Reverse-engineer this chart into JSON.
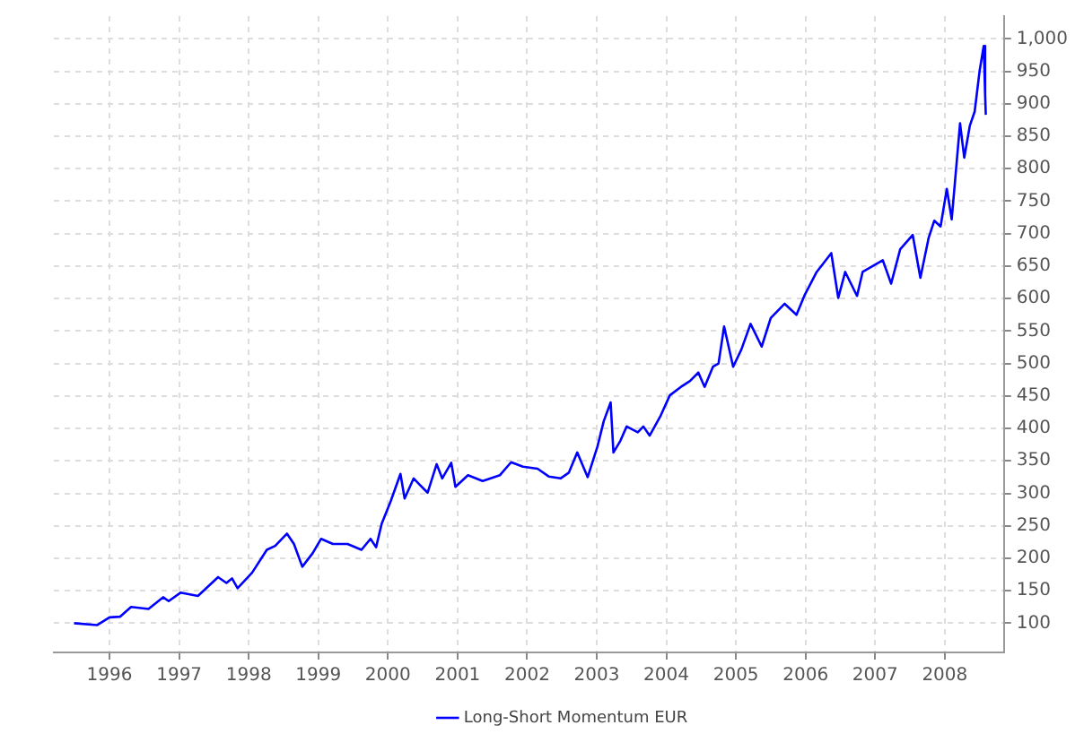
{
  "chart_data": {
    "type": "line",
    "xlim": [
      1995.2,
      2008.85
    ],
    "xticks": [
      1996,
      1997,
      1998,
      1999,
      2000,
      2001,
      2002,
      2003,
      2004,
      2005,
      2006,
      2007,
      2008
    ],
    "ylim": [
      55,
      1035
    ],
    "yticks": [
      100,
      150,
      200,
      250,
      300,
      350,
      400,
      450,
      500,
      550,
      600,
      650,
      700,
      750,
      800,
      850,
      900,
      950,
      {
        "value": 1000,
        "label": "1,000"
      }
    ],
    "grid": true,
    "legend": "bottom",
    "marker": "none",
    "line_style": "solid",
    "series": [
      {
        "name": "Long-Short Momentum EUR",
        "color": "#0000ff",
        "x": [
          1995.49,
          1995.82,
          1996.0,
          1996.15,
          1996.31,
          1996.56,
          1996.77,
          1996.85,
          1997.02,
          1997.27,
          1997.56,
          1997.68,
          1997.76,
          1997.84,
          1998.05,
          1998.26,
          1998.38,
          1998.55,
          1998.65,
          1998.77,
          1998.92,
          1999.04,
          1999.21,
          1999.42,
          1999.62,
          1999.75,
          1999.83,
          1999.91,
          2000.04,
          2000.18,
          2000.24,
          2000.37,
          2000.45,
          2000.57,
          2000.7,
          2000.78,
          2000.91,
          2000.97,
          2001.15,
          2001.36,
          2001.61,
          2001.77,
          2001.94,
          2002.15,
          2002.31,
          2002.48,
          2002.6,
          2002.72,
          2002.87,
          2003.01,
          2003.1,
          2003.2,
          2003.24,
          2003.34,
          2003.43,
          2003.59,
          2003.67,
          2003.76,
          2003.92,
          2004.05,
          2004.21,
          2004.34,
          2004.46,
          2004.55,
          2004.67,
          2004.75,
          2004.83,
          2004.96,
          2005.08,
          2005.21,
          2005.37,
          2005.5,
          2005.7,
          2005.87,
          2005.99,
          2006.16,
          2006.37,
          2006.47,
          2006.57,
          2006.74,
          2006.82,
          2007.11,
          2007.23,
          2007.36,
          2007.54,
          2007.65,
          2007.77,
          2007.85,
          2007.94,
          2008.03,
          2008.1,
          2008.22,
          2008.28,
          2008.36,
          2008.43,
          2008.5,
          2008.56,
          2008.58,
          2008.59
        ],
        "values": [
          100,
          97,
          109,
          110,
          125,
          122,
          140,
          134,
          147,
          142,
          171,
          162,
          169,
          154,
          178,
          213,
          219,
          238,
          222,
          187,
          208,
          230,
          222,
          222,
          213,
          230,
          217,
          253,
          288,
          330,
          292,
          323,
          314,
          301,
          345,
          323,
          347,
          310,
          328,
          319,
          328,
          348,
          341,
          338,
          326,
          323,
          332,
          363,
          325,
          372,
          411,
          440,
          363,
          381,
          403,
          394,
          403,
          389,
          420,
          451,
          464,
          473,
          486,
          464,
          495,
          500,
          557,
          495,
          522,
          561,
          526,
          570,
          592,
          575,
          606,
          641,
          670,
          601,
          641,
          604,
          641,
          659,
          623,
          676,
          698,
          632,
          694,
          720,
          711,
          769,
          722,
          870,
          817,
          866,
          888,
          950,
          989,
          914,
          883
        ]
      }
    ]
  }
}
